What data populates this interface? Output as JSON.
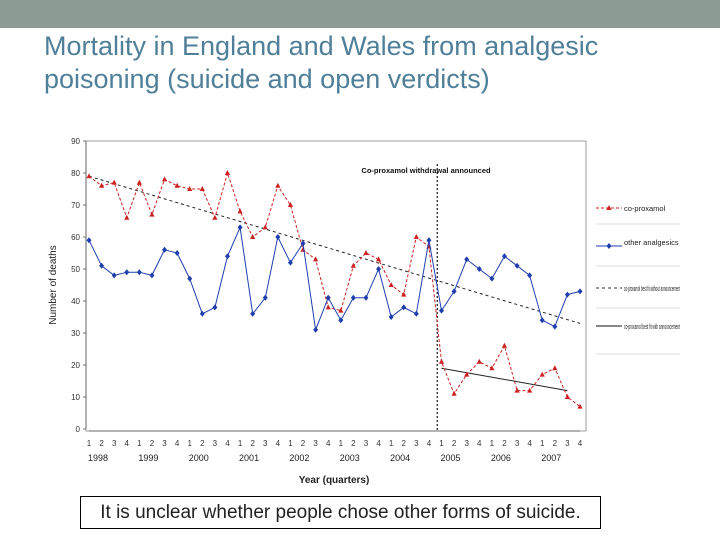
{
  "slide": {
    "title": "Mortality in England and Wales from analgesic poisoning (suicide and open verdicts)",
    "caption": "It is unclear whether people chose other forms of suicide."
  },
  "colors": {
    "top_bar": "#8c9b93",
    "title": "#4f7f99",
    "coproxamol": "#cc2222",
    "other": "#1f3fae"
  },
  "chart_data": {
    "type": "line",
    "ylabel": "Number of deaths",
    "xlabel": "Year (quarters)",
    "ylim": [
      0,
      90
    ],
    "yticks": [
      0,
      10,
      20,
      30,
      40,
      50,
      60,
      70,
      80,
      90
    ],
    "quarter_labels": [
      "1",
      "2",
      "3",
      "4",
      "1",
      "2",
      "3",
      "4",
      "1",
      "2",
      "3",
      "4",
      "1",
      "2",
      "3",
      "4",
      "1",
      "2",
      "3",
      "4",
      "1",
      "2",
      "3",
      "4",
      "1",
      "2",
      "3",
      "4",
      "1",
      "2",
      "3",
      "4",
      "1",
      "2",
      "3",
      "4",
      "1",
      "2",
      "3",
      "4"
    ],
    "years": [
      "1998",
      "1999",
      "2000",
      "2001",
      "2002",
      "2003",
      "2004",
      "2005",
      "2006",
      "2007"
    ],
    "annotation": "Co-proxamol withdrawal announced",
    "withdrawal_index": 27.5,
    "series": [
      {
        "name": "co-proxamol",
        "marker": "triangle",
        "values": [
          79,
          76,
          77,
          66,
          77,
          67,
          78,
          76,
          75,
          75,
          66,
          80,
          68,
          60,
          63,
          76,
          70,
          56,
          53,
          38,
          37,
          51,
          55,
          53,
          45,
          42,
          60,
          57,
          21,
          11,
          17,
          21,
          19,
          26,
          12,
          12,
          17,
          19,
          10,
          7
        ]
      },
      {
        "name": "other analgesics",
        "marker": "diamond",
        "values": [
          59,
          51,
          48,
          49,
          49,
          48,
          56,
          55,
          47,
          36,
          38,
          54,
          63,
          36,
          41,
          60,
          52,
          58,
          31,
          41,
          34,
          41,
          41,
          50,
          35,
          38,
          36,
          59,
          37,
          43,
          53,
          50,
          47,
          54,
          51,
          48,
          34,
          32,
          42,
          43
        ]
      }
    ],
    "trend_lines": [
      {
        "name": "co-proxamol best fit without announcement",
        "style": "dashed",
        "start": [
          0,
          79
        ],
        "end": [
          39,
          33
        ]
      },
      {
        "name": "co-proxamol best fit with announcement",
        "style": "solid",
        "start": [
          28,
          19
        ],
        "end": [
          38,
          12
        ]
      }
    ],
    "legend": [
      "co-proxamol",
      "other analgesics",
      "co-proxamol best fit without announcement",
      "co-proxamol best fit with announcement"
    ]
  }
}
